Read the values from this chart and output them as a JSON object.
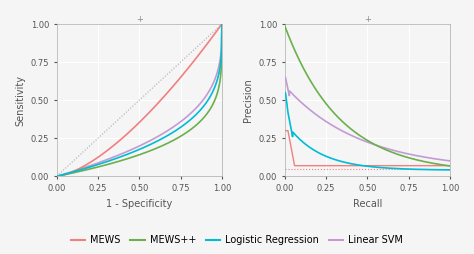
{
  "fig_width": 4.74,
  "fig_height": 2.54,
  "dpi": 100,
  "background_color": "#f5f5f5",
  "grid_color": "#ffffff",
  "colors": {
    "MEWS": "#f08080",
    "MEWS++": "#6ab04c",
    "Logistic Regression": "#00bcd4",
    "Linear SVM": "#c39bd3"
  },
  "roc": {
    "xlabel": "1 - Specificity",
    "ylabel": "Sensitivity",
    "xlim": [
      0.0,
      1.0
    ],
    "ylim": [
      0.0,
      1.0
    ],
    "xticks": [
      0.0,
      0.25,
      0.5,
      0.75,
      1.0
    ],
    "yticks": [
      0.0,
      0.25,
      0.5,
      0.75,
      1.0
    ]
  },
  "pr": {
    "xlabel": "Recall",
    "ylabel": "Precision",
    "xlim": [
      0.0,
      1.0
    ],
    "ylim": [
      0.0,
      1.0
    ],
    "xticks": [
      0.0,
      0.25,
      0.5,
      0.75,
      1.0
    ],
    "yticks": [
      0.0,
      0.25,
      0.5,
      0.75,
      1.0
    ],
    "baseline": 0.05
  },
  "legend": {
    "labels": [
      "MEWS",
      "MEWS++",
      "Logistic Regression",
      "Linear SVM"
    ],
    "ncol": 4,
    "fontsize": 7
  }
}
